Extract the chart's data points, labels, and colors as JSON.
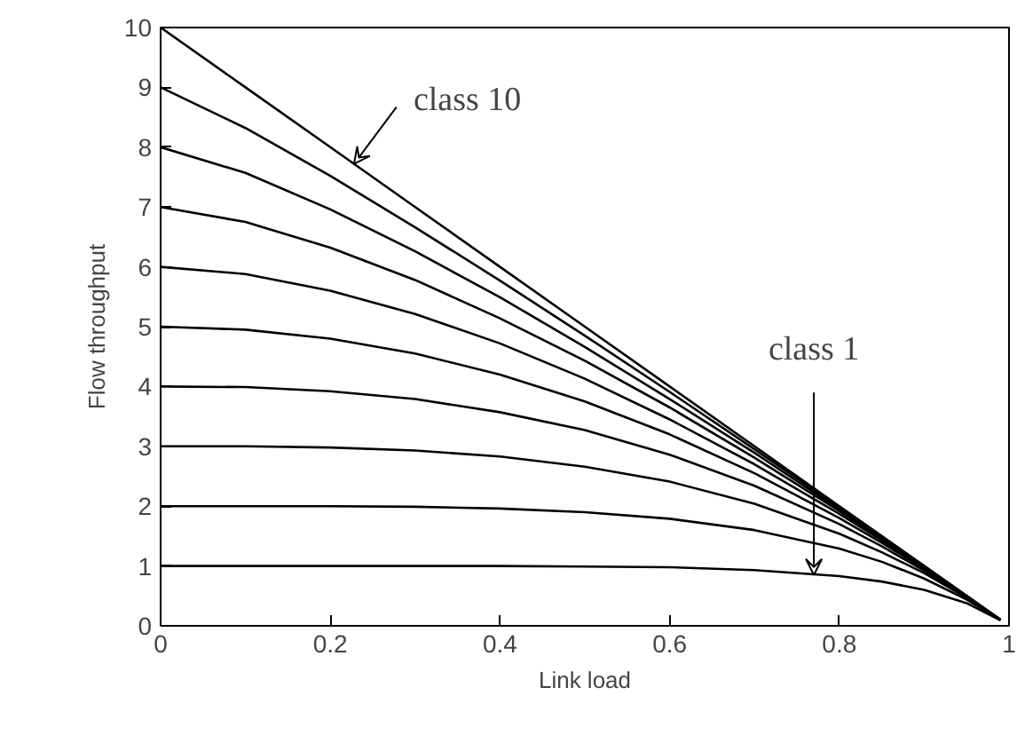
{
  "chart_data": {
    "type": "line",
    "xlabel": "Link load",
    "ylabel": "Flow throughput",
    "x": [
      0,
      0.1,
      0.2,
      0.3,
      0.4,
      0.5,
      0.6,
      0.7,
      0.8,
      0.85,
      0.9,
      0.95,
      0.99
    ],
    "series": [
      {
        "color": "#000000",
        "values": [
          1,
          1.0,
          1.0,
          1.0,
          1.0,
          0.99,
          0.98,
          0.93,
          0.83,
          0.74,
          0.6,
          0.38,
          0.09
        ]
      },
      {
        "color": "#000000",
        "values": [
          2,
          2.0,
          2.0,
          1.99,
          1.96,
          1.9,
          1.79,
          1.6,
          1.29,
          1.07,
          0.79,
          0.44,
          0.1
        ]
      },
      {
        "color": "#000000",
        "values": [
          3,
          3.0,
          2.98,
          2.93,
          2.83,
          2.66,
          2.41,
          2.04,
          1.54,
          1.23,
          0.88,
          0.47,
          0.1
        ]
      },
      {
        "color": "#000000",
        "values": [
          4,
          3.99,
          3.92,
          3.79,
          3.57,
          3.27,
          2.86,
          2.34,
          1.7,
          1.33,
          0.92,
          0.48,
          0.1
        ]
      },
      {
        "color": "#000000",
        "values": [
          5,
          4.95,
          4.8,
          4.55,
          4.2,
          3.75,
          3.2,
          2.55,
          1.8,
          1.39,
          0.95,
          0.49,
          0.1
        ]
      },
      {
        "color": "#000000",
        "values": [
          6,
          5.88,
          5.6,
          5.21,
          4.72,
          4.13,
          3.45,
          2.7,
          1.87,
          1.43,
          0.97,
          0.49,
          0.1
        ]
      },
      {
        "color": "#000000",
        "values": [
          7,
          6.75,
          6.32,
          5.78,
          5.14,
          4.43,
          3.65,
          2.81,
          1.92,
          1.45,
          0.98,
          0.5,
          0.1
        ]
      },
      {
        "color": "#000000",
        "values": [
          8,
          7.57,
          6.96,
          6.26,
          5.49,
          4.66,
          3.79,
          2.89,
          1.95,
          1.47,
          0.99,
          0.5,
          0.1
        ]
      },
      {
        "color": "#000000",
        "values": [
          9,
          8.32,
          7.52,
          6.66,
          5.77,
          4.85,
          3.91,
          2.95,
          1.98,
          1.49,
          1.0,
          0.5,
          0.1
        ]
      },
      {
        "color": "#000000",
        "values": [
          10,
          9.0,
          8.0,
          7.0,
          6.0,
          5.0,
          4.0,
          3.0,
          2.0,
          1.5,
          1.0,
          0.5,
          0.1
        ]
      }
    ],
    "xlim": [
      0,
      1
    ],
    "xticks": [
      0,
      {
        "value": 0.2,
        "label": "0.2"
      },
      {
        "value": 0.4,
        "label": "0.4"
      },
      {
        "value": 0.6,
        "label": "0.6"
      },
      {
        "value": 0.8,
        "label": "0.8"
      },
      1
    ],
    "ylim": [
      0,
      10
    ],
    "yticks": [
      0,
      1,
      2,
      3,
      4,
      5,
      6,
      7,
      8,
      9,
      10
    ],
    "annotations": [
      {
        "text": "class 10",
        "x": 0.228,
        "y": 7.72
      },
      {
        "text": "class 1",
        "x": 0.77,
        "y": 0.85
      }
    ],
    "grid": false,
    "marker": "none",
    "line_style": "solid"
  }
}
